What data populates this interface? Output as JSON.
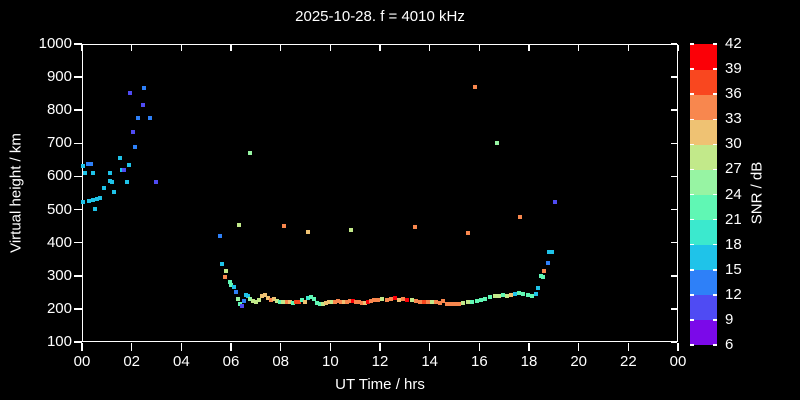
{
  "chart_data": {
    "type": "scatter",
    "title": "2025-10-28. f = 4010 kHz",
    "xlabel": "UT Time / hrs",
    "ylabel": "Virtual height / km",
    "xlim": [
      0,
      24
    ],
    "ylim": [
      100,
      1000
    ],
    "x_tick_hours": [
      0,
      2,
      4,
      6,
      8,
      10,
      12,
      14,
      16,
      18,
      20,
      22,
      24
    ],
    "x_tick_labels": [
      "00",
      "02",
      "04",
      "06",
      "08",
      "10",
      "12",
      "14",
      "16",
      "18",
      "20",
      "22",
      "00"
    ],
    "y_ticks": [
      100,
      200,
      300,
      400,
      500,
      600,
      700,
      800,
      900,
      1000
    ],
    "grid": false,
    "background": "#000000",
    "foreground": "#ffffff",
    "colorbar": {
      "label": "SNR / dB",
      "ticks": [
        6,
        9,
        12,
        15,
        18,
        21,
        24,
        27,
        30,
        33,
        36,
        39,
        42
      ],
      "band_colors_low_to_high": [
        "#7B09E9",
        "#4F4BF3",
        "#2E80F8",
        "#1FC3E9",
        "#3BE9CE",
        "#60F7B4",
        "#97F4A3",
        "#C2E98A",
        "#EFC273",
        "#F8874E",
        "#F9471F",
        "#FB0007"
      ]
    },
    "points_format": [
      "ut_hour",
      "virtual_height_km",
      "snr_db"
    ],
    "points": [
      [
        0.05,
        631,
        16
      ],
      [
        0.05,
        523,
        16
      ],
      [
        0.12,
        610,
        16
      ],
      [
        0.24,
        638,
        13
      ],
      [
        0.36,
        638,
        13
      ],
      [
        0.28,
        526,
        16
      ],
      [
        0.44,
        610,
        16
      ],
      [
        0.44,
        529,
        16
      ],
      [
        0.52,
        502,
        16
      ],
      [
        0.6,
        532,
        16
      ],
      [
        0.72,
        535,
        16
      ],
      [
        0.89,
        565,
        16
      ],
      [
        1.13,
        610,
        16
      ],
      [
        1.13,
        586,
        16
      ],
      [
        1.21,
        583,
        16
      ],
      [
        1.29,
        553,
        16
      ],
      [
        1.53,
        656,
        16
      ],
      [
        1.62,
        620,
        16
      ],
      [
        1.7,
        619,
        10
      ],
      [
        1.81,
        583,
        16
      ],
      [
        1.89,
        635,
        16
      ],
      [
        1.93,
        852,
        10
      ],
      [
        2.05,
        735,
        10
      ],
      [
        2.13,
        690,
        13
      ],
      [
        2.25,
        777,
        13
      ],
      [
        2.45,
        816,
        10
      ],
      [
        2.5,
        867,
        13
      ],
      [
        2.74,
        777,
        13
      ],
      [
        2.98,
        583,
        10
      ],
      [
        5.56,
        420,
        13
      ],
      [
        5.64,
        336,
        16
      ],
      [
        5.8,
        314,
        28
      ],
      [
        5.76,
        296,
        34
      ],
      [
        5.94,
        281,
        22
      ],
      [
        5.98,
        272,
        22
      ],
      [
        6.12,
        266,
        16
      ],
      [
        6.2,
        251,
        13
      ],
      [
        6.27,
        230,
        25
      ],
      [
        6.35,
        216,
        22
      ],
      [
        6.44,
        210,
        10
      ],
      [
        6.52,
        224,
        13
      ],
      [
        6.6,
        242,
        16
      ],
      [
        6.68,
        239,
        16
      ],
      [
        6.77,
        230,
        25
      ],
      [
        6.89,
        224,
        28
      ],
      [
        7.01,
        221,
        28
      ],
      [
        7.13,
        227,
        28
      ],
      [
        7.25,
        239,
        31
      ],
      [
        7.37,
        242,
        31
      ],
      [
        7.49,
        233,
        31
      ],
      [
        7.61,
        227,
        34
      ],
      [
        7.73,
        230,
        31
      ],
      [
        7.85,
        224,
        28
      ],
      [
        7.97,
        221,
        22
      ],
      [
        8.1,
        221,
        28
      ],
      [
        8.26,
        221,
        34
      ],
      [
        8.38,
        221,
        31
      ],
      [
        8.5,
        218,
        22
      ],
      [
        8.62,
        221,
        37
      ],
      [
        8.74,
        221,
        37
      ],
      [
        8.86,
        227,
        22
      ],
      [
        8.98,
        221,
        31
      ],
      [
        9.1,
        233,
        19
      ],
      [
        9.22,
        236,
        22
      ],
      [
        9.34,
        230,
        22
      ],
      [
        9.46,
        218,
        22
      ],
      [
        9.58,
        215,
        22
      ],
      [
        9.71,
        215,
        28
      ],
      [
        9.83,
        218,
        31
      ],
      [
        9.95,
        221,
        31
      ],
      [
        10.07,
        221,
        28
      ],
      [
        10.19,
        221,
        34
      ],
      [
        10.31,
        224,
        34
      ],
      [
        10.43,
        221,
        34
      ],
      [
        10.55,
        221,
        31
      ],
      [
        10.67,
        221,
        34
      ],
      [
        10.79,
        224,
        34
      ],
      [
        10.91,
        224,
        40
      ],
      [
        11.04,
        221,
        34
      ],
      [
        11.16,
        221,
        34
      ],
      [
        11.28,
        218,
        34
      ],
      [
        11.4,
        218,
        31
      ],
      [
        11.52,
        221,
        40
      ],
      [
        11.64,
        224,
        34
      ],
      [
        11.76,
        227,
        34
      ],
      [
        11.92,
        227,
        34
      ],
      [
        12.1,
        230,
        28
      ],
      [
        12.28,
        227,
        34
      ],
      [
        12.44,
        230,
        34
      ],
      [
        12.6,
        233,
        40
      ],
      [
        12.77,
        227,
        31
      ],
      [
        12.93,
        230,
        34
      ],
      [
        13.1,
        227,
        40
      ],
      [
        13.29,
        227,
        28
      ],
      [
        13.45,
        224,
        34
      ],
      [
        13.61,
        221,
        34
      ],
      [
        13.77,
        221,
        37
      ],
      [
        13.93,
        221,
        34
      ],
      [
        14.1,
        221,
        28
      ],
      [
        14.26,
        221,
        34
      ],
      [
        14.42,
        218,
        34
      ],
      [
        14.54,
        224,
        34
      ],
      [
        14.7,
        215,
        34
      ],
      [
        14.86,
        215,
        34
      ],
      [
        15.02,
        215,
        34
      ],
      [
        15.18,
        215,
        34
      ],
      [
        15.35,
        218,
        28
      ],
      [
        15.55,
        221,
        28
      ],
      [
        15.72,
        221,
        22
      ],
      [
        15.91,
        224,
        22
      ],
      [
        16.07,
        227,
        22
      ],
      [
        16.23,
        230,
        22
      ],
      [
        16.43,
        236,
        22
      ],
      [
        16.63,
        239,
        28
      ],
      [
        16.79,
        239,
        28
      ],
      [
        16.95,
        242,
        22
      ],
      [
        17.12,
        239,
        28
      ],
      [
        17.28,
        242,
        31
      ],
      [
        17.44,
        245,
        16
      ],
      [
        17.6,
        248,
        22
      ],
      [
        17.76,
        245,
        22
      ],
      [
        17.96,
        242,
        22
      ],
      [
        18.12,
        239,
        22
      ],
      [
        18.28,
        245,
        16
      ],
      [
        18.36,
        263,
        16
      ],
      [
        18.49,
        300,
        22
      ],
      [
        18.57,
        296,
        22
      ],
      [
        18.6,
        315,
        34
      ],
      [
        18.77,
        339,
        13
      ],
      [
        18.81,
        372,
        16
      ],
      [
        18.93,
        372,
        16
      ],
      [
        6.33,
        452,
        28
      ],
      [
        6.77,
        672,
        25
      ],
      [
        8.15,
        450,
        34
      ],
      [
        9.1,
        432,
        31
      ],
      [
        10.83,
        438,
        28
      ],
      [
        13.4,
        447,
        34
      ],
      [
        15.55,
        430,
        34
      ],
      [
        15.83,
        870,
        34
      ],
      [
        16.7,
        701,
        25
      ],
      [
        17.64,
        477,
        34
      ],
      [
        19.05,
        524,
        10
      ]
    ]
  }
}
